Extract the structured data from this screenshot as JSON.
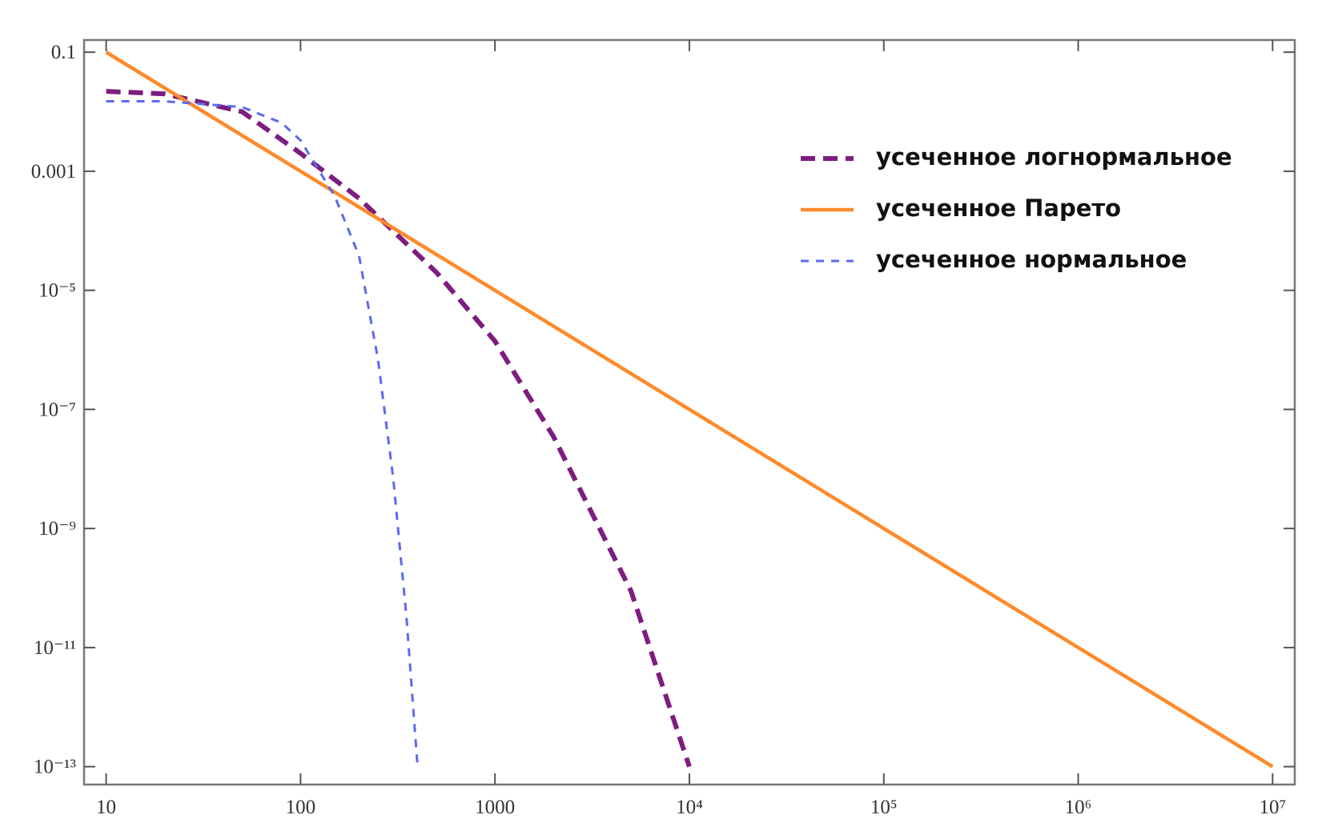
{
  "chart_data": {
    "type": "line",
    "log_x": true,
    "log_y": true,
    "legend": "upper right",
    "xlim": [
      7.7,
      13000000
    ],
    "ylim": [
      5e-14,
      0.16
    ],
    "xticks": [
      10,
      100,
      1000,
      {
        "value": 10000,
        "label": "10⁴"
      },
      {
        "value": 100000,
        "label": "10⁵"
      },
      {
        "value": 1000000,
        "label": "10⁶"
      },
      {
        "value": 10000000,
        "label": "10⁷"
      }
    ],
    "yticks": [
      0.1,
      0.001,
      {
        "value": 1e-05,
        "label": "10⁻⁵"
      },
      {
        "value": 1e-07,
        "label": "10⁻⁷"
      },
      {
        "value": 1e-09,
        "label": "10⁻⁹"
      },
      {
        "value": 1e-11,
        "label": "10⁻¹¹"
      },
      {
        "value": 1e-13,
        "label": "10⁻¹³"
      }
    ],
    "series": [
      {
        "name": "усеченное логнормальное",
        "color": "#7d1d80",
        "dash": "dashed",
        "x": [
          10,
          20,
          50,
          100,
          200,
          500,
          1000,
          2000,
          5000,
          10000
        ],
        "values": [
          0.022,
          0.02,
          0.01,
          0.002,
          0.00035,
          2e-05,
          1.4e-06,
          3.5e-08,
          9e-11,
          1e-13
        ]
      },
      {
        "name": "усеченное Парето",
        "color": "#ff8a2b",
        "dash": "solid",
        "x": [
          10,
          10000000
        ],
        "values": [
          0.1,
          1e-13
        ]
      },
      {
        "name": "усеченное нормальное",
        "color": "#5a6af0",
        "dash": "short-dashed",
        "x": [
          10,
          20,
          50,
          80,
          100,
          150,
          200,
          250,
          300,
          350,
          400
        ],
        "values": [
          0.015,
          0.015,
          0.012,
          0.0065,
          0.0033,
          0.00038,
          3.8e-05,
          7e-07,
          6.8e-09,
          3.4e-11,
          1e-13
        ]
      }
    ]
  }
}
